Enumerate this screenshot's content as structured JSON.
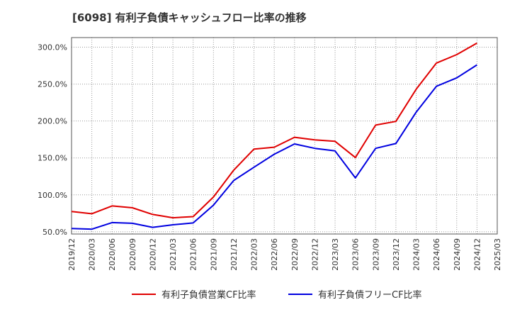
{
  "chart_data": {
    "type": "line",
    "title": "[6098]  有利子負債キャッシュフロー比率の推移",
    "x": [
      "2019/12",
      "2020/03",
      "2020/06",
      "2020/09",
      "2020/12",
      "2021/03",
      "2021/06",
      "2021/09",
      "2021/12",
      "2022/03",
      "2022/06",
      "2022/09",
      "2022/12",
      "2023/03",
      "2023/06",
      "2023/09",
      "2023/12",
      "2024/03",
      "2024/06",
      "2024/09",
      "2024/12",
      "2025/03"
    ],
    "ylim": [
      47.0,
      313.0
    ],
    "yticks": [
      "50.0%",
      "100.0%",
      "150.0%",
      "200.0%",
      "250.0%",
      "300.0%"
    ],
    "ytick_values": [
      50,
      100,
      150,
      200,
      250,
      300
    ],
    "grid": true,
    "legend_position": "bottom",
    "series": [
      {
        "name": "有利子負債営業CF比率",
        "color": "#e00000",
        "values": [
          77.5,
          74.5,
          85.0,
          82.5,
          73.5,
          69.0,
          70.5,
          97.0,
          133.5,
          162.0,
          164.5,
          178.0,
          174.5,
          172.5,
          150.5,
          194.5,
          199.5,
          243.0,
          278.5,
          290.0,
          305.5,
          null
        ]
      },
      {
        "name": "有利子負債フリーCF比率",
        "color": "#0000e0",
        "values": [
          54.5,
          53.5,
          62.5,
          61.5,
          56.0,
          59.5,
          62.0,
          86.0,
          119.5,
          137.5,
          155.0,
          169.0,
          163.0,
          159.5,
          123.0,
          163.0,
          169.5,
          212.0,
          247.0,
          258.5,
          276.0,
          null
        ]
      }
    ]
  }
}
